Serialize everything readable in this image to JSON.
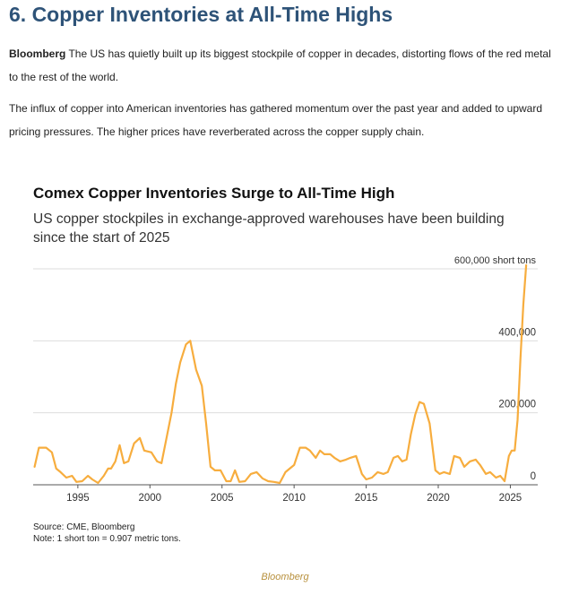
{
  "article": {
    "heading": "6. Copper Inventories at All-Time Highs",
    "para1_source": "Bloomberg",
    "para1_text": " The US has quietly built up its biggest stockpile of copper in decades, distorting flows of the red metal to the rest of the world.",
    "para2_text": "The influx of copper into American inventories has gathered momentum over the past year and added to upward pricing pressures. The higher prices have reverberated across the copper supply chain.",
    "credit": "Bloomberg"
  },
  "chart_data": {
    "type": "line",
    "title": "Comex Copper Inventories Surge to All-Time High",
    "subtitle": "US copper stockpiles in exchange-approved warehouses have been building since the start of 2025",
    "unit_label": "600,000 short tons",
    "xlim": [
      1991.9,
      2026.9
    ],
    "ylim": [
      0,
      600000
    ],
    "x_ticks": [
      1995,
      2000,
      2005,
      2010,
      2015,
      2020,
      2025
    ],
    "y_ticks": [
      0,
      200000,
      400000,
      600000
    ],
    "y_tick_labels": [
      "0",
      "200,000",
      "400,000",
      "600,000 short tons"
    ],
    "grid": true,
    "legend": "none",
    "line_color": "#f7ad3e",
    "source": "Source: CME, Bloomberg",
    "note": "Note: 1 short ton = 0.907 metric tons.",
    "series": [
      {
        "x": [
          1992.0,
          1992.3,
          1992.8,
          1993.2,
          1993.5,
          1993.8,
          1994.2,
          1994.6,
          1994.9,
          1995.3,
          1995.7,
          1996.0,
          1996.4,
          1996.8,
          1997.1,
          1997.3,
          1997.6,
          1997.9,
          1998.2,
          1998.5,
          1998.9,
          1999.3,
          1999.6,
          2000.1,
          2000.5,
          2000.8,
          2001.2,
          2001.5,
          2001.8,
          2002.1,
          2002.5,
          2002.8,
          2003.2,
          2003.6,
          2003.9,
          2004.2,
          2004.5,
          2004.9,
          2005.3,
          2005.6,
          2005.9,
          2006.2,
          2006.6,
          2007.0,
          2007.4,
          2007.8,
          2008.2,
          2008.6,
          2009.0,
          2009.4,
          2009.7,
          2010.0,
          2010.4,
          2010.8,
          2011.1,
          2011.5,
          2011.8,
          2012.1,
          2012.5,
          2012.8,
          2013.2,
          2013.6,
          2013.9,
          2014.3,
          2014.7,
          2015.0,
          2015.4,
          2015.8,
          2016.2,
          2016.5,
          2016.9,
          2017.2,
          2017.5,
          2017.8,
          2018.1,
          2018.4,
          2018.7,
          2019.0,
          2019.4,
          2019.8,
          2020.1,
          2020.4,
          2020.8,
          2021.1,
          2021.5,
          2021.8,
          2022.2,
          2022.6,
          2022.9,
          2023.3,
          2023.6,
          2024.0,
          2024.3,
          2024.6,
          2024.9,
          2025.1,
          2025.3,
          2025.5,
          2025.7,
          2025.9,
          2026.1
        ],
        "y": [
          50000,
          103000,
          103000,
          90000,
          45000,
          35000,
          20000,
          25000,
          8000,
          10000,
          25000,
          15000,
          5000,
          25000,
          45000,
          45000,
          65000,
          110000,
          60000,
          65000,
          115000,
          130000,
          95000,
          90000,
          65000,
          60000,
          140000,
          200000,
          280000,
          340000,
          390000,
          400000,
          320000,
          275000,
          170000,
          50000,
          40000,
          40000,
          10000,
          10000,
          40000,
          8000,
          10000,
          30000,
          35000,
          18000,
          10000,
          8000,
          5000,
          35000,
          45000,
          55000,
          103000,
          103000,
          95000,
          75000,
          95000,
          85000,
          85000,
          75000,
          65000,
          70000,
          75000,
          80000,
          30000,
          15000,
          20000,
          35000,
          30000,
          35000,
          75000,
          80000,
          65000,
          70000,
          140000,
          195000,
          230000,
          225000,
          170000,
          40000,
          30000,
          35000,
          30000,
          80000,
          75000,
          50000,
          65000,
          70000,
          55000,
          30000,
          35000,
          20000,
          25000,
          10000,
          80000,
          95000,
          95000,
          180000,
          350000,
          500000,
          610000
        ]
      }
    ]
  }
}
